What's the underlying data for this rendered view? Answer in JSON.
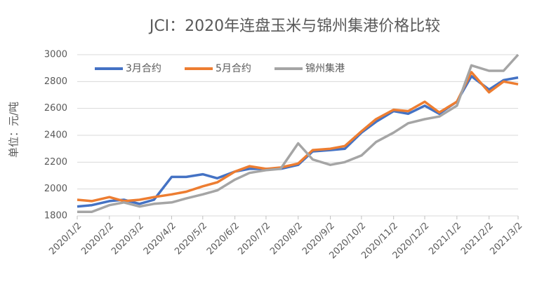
{
  "chart_data": {
    "type": "line",
    "title": "JCI：2020年连盘玉米与锦州集港价格比较",
    "y_label": "单位：元/吨",
    "x": [
      "2020/1/2",
      "2020/1/16",
      "2020/2/2",
      "2020/2/16",
      "2020/3/2",
      "2020/3/16",
      "2020/4/2",
      "2020/4/16",
      "2020/5/2",
      "2020/5/16",
      "2020/6/2",
      "2020/6/16",
      "2020/7/2",
      "2020/7/16",
      "2020/8/2",
      "2020/8/16",
      "2020/9/2",
      "2020/9/16",
      "2020/10/2",
      "2020/10/16",
      "2020/11/2",
      "2020/11/16",
      "2020/12/2",
      "2020/12/16",
      "2021/1/2",
      "2021/1/16",
      "2021/2/2",
      "2021/2/16",
      "2021/3/2"
    ],
    "series": [
      {
        "name": "3月合约",
        "color": "#4472c4",
        "values": [
          1870,
          1880,
          1910,
          1920,
          1890,
          1920,
          2090,
          2090,
          2110,
          2080,
          2130,
          2150,
          2150,
          2150,
          2180,
          2280,
          2290,
          2300,
          2420,
          2500,
          2580,
          2560,
          2620,
          2560,
          2650,
          2840,
          2740,
          2810,
          2830
        ]
      },
      {
        "name": "5月合约",
        "color": "#ed7d31",
        "values": [
          1920,
          1910,
          1940,
          1910,
          1920,
          1940,
          1960,
          1980,
          2020,
          2050,
          2130,
          2170,
          2150,
          2160,
          2190,
          2290,
          2300,
          2320,
          2430,
          2520,
          2590,
          2580,
          2650,
          2570,
          2650,
          2870,
          2720,
          2800,
          2780
        ]
      },
      {
        "name": "锦州集港",
        "color": "#a5a5a5",
        "values": [
          1830,
          1830,
          1880,
          1900,
          1870,
          1890,
          1900,
          1930,
          1960,
          1990,
          2070,
          2120,
          2140,
          2150,
          2340,
          2220,
          2180,
          2200,
          2250,
          2350,
          2420,
          2490,
          2520,
          2540,
          2620,
          2920,
          2880,
          2880,
          3000
        ]
      }
    ],
    "xlim": [
      "2020/1/2",
      "2021/3/2"
    ],
    "xticks": [
      "2020/1/2",
      "2020/2/2",
      "2020/3/2",
      "2020/4/2",
      "2020/5/2",
      "2020/6/2",
      "2020/7/2",
      "2020/8/2",
      "2020/9/2",
      "2020/10/2",
      "2020/11/2",
      "2020/12/2",
      "2021/1/2",
      "2021/2/2",
      "2021/3/2"
    ],
    "ylim": [
      1800,
      3000
    ],
    "yticks": [
      {
        "value": 1800,
        "label": "1800"
      },
      {
        "value": 2000,
        "label": "2000"
      },
      {
        "value": 2200,
        "label": "2200"
      },
      {
        "value": 2400,
        "label": "2400"
      },
      {
        "value": 2600,
        "label": "2600"
      },
      {
        "value": 2800,
        "label": "2800"
      },
      {
        "value": 3000,
        "label": "3000"
      }
    ],
    "grid": true,
    "legend": "top-left"
  }
}
